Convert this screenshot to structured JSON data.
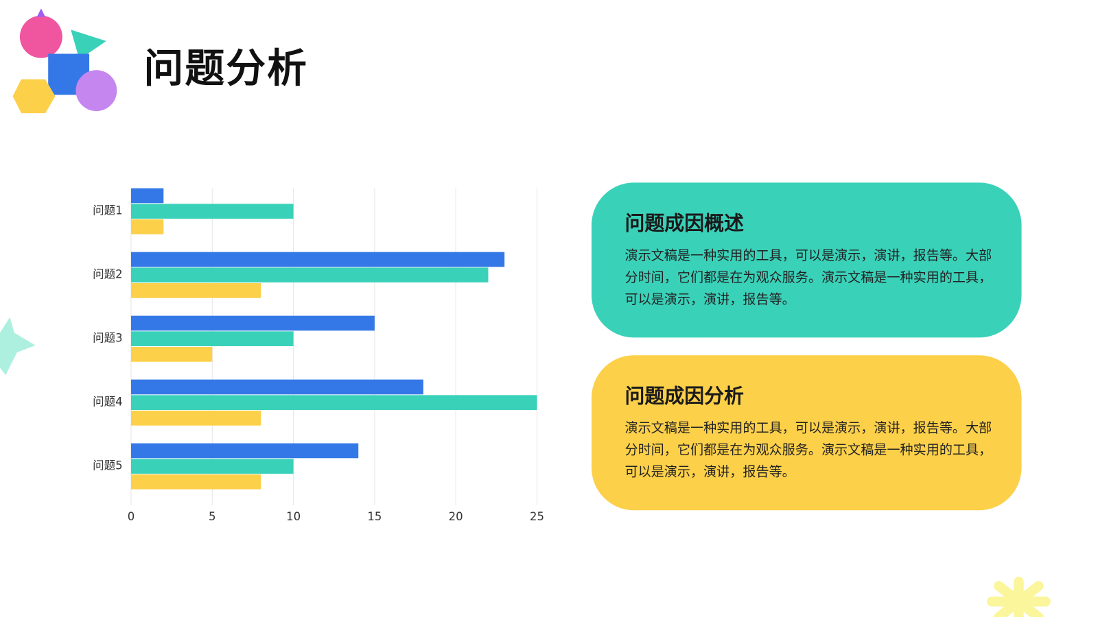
{
  "header": {
    "title": "问题分析"
  },
  "chart_data": {
    "type": "bar",
    "orientation": "horizontal",
    "categories": [
      "问题1",
      "问题2",
      "问题3",
      "问题4",
      "问题5"
    ],
    "series": [
      {
        "color": "#3478e8",
        "values": [
          2,
          23,
          15,
          18,
          14
        ]
      },
      {
        "color": "#3ad1b9",
        "values": [
          10,
          22,
          10,
          25,
          10
        ]
      },
      {
        "color": "#fdd04a",
        "values": [
          2,
          8,
          5,
          8,
          8
        ]
      }
    ],
    "xlim": [
      0,
      25
    ],
    "xticks": [
      0,
      5,
      10,
      15,
      20,
      25
    ],
    "grid": true
  },
  "cards": [
    {
      "title": "问题成因概述",
      "body": "演示文稿是一种实用的工具，可以是演示，演讲，报告等。大部分时间，它们都是在为观众服务。演示文稿是一种实用的工具，可以是演示，演讲，报告等。",
      "color": "#3ad1b9"
    },
    {
      "title": "问题成因分析",
      "body": "演示文稿是一种实用的工具，可以是演示，演讲，报告等。大部分时间，它们都是在为观众服务。演示文稿是一种实用的工具，可以是演示，演讲，报告等。",
      "color": "#fdd04a"
    }
  ]
}
